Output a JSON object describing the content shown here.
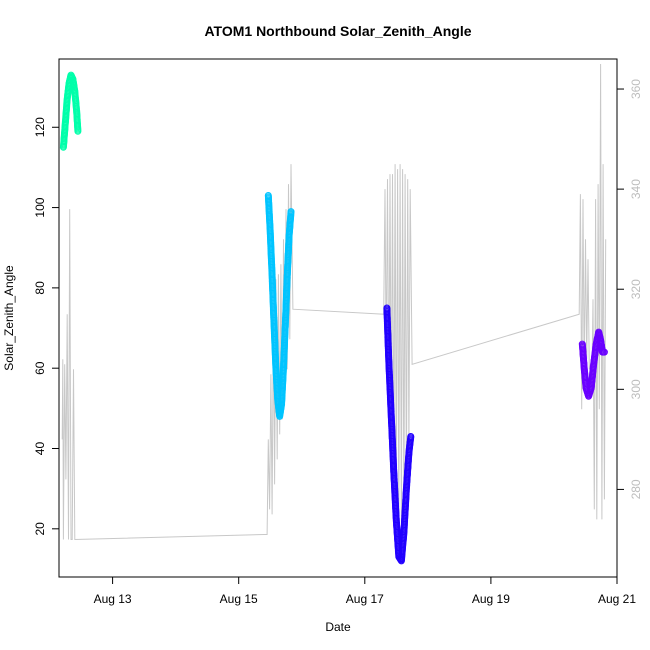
{
  "chart_data": {
    "type": "scatter",
    "title": "ATOM1 Northbound Solar_Zenith_Angle",
    "xlabel": "Date",
    "ylabel": "Solar_Zenith_Angle",
    "x_ticks": [
      "Aug 13",
      "Aug 15",
      "Aug 17",
      "Aug 19",
      "Aug 21"
    ],
    "x_tick_days": [
      13,
      15,
      17,
      19,
      21
    ],
    "xlim": [
      12.15,
      21.0
    ],
    "y_ticks": [
      20,
      40,
      60,
      80,
      100,
      120
    ],
    "ylim": [
      8,
      137
    ],
    "y2_ticks": [
      280,
      300,
      320,
      340,
      360
    ],
    "y2lim": [
      262.5,
      366
    ],
    "grid": false,
    "legend": "none",
    "colors": {
      "secondary_line": "#c8c8c8",
      "right_axis": "#bdbdbd",
      "seg1": "#00ffaa",
      "seg2": "#00c4ff",
      "seg3": "#2200ff",
      "seg4": "#6a00ff"
    },
    "series": [
      {
        "color_key": "seg1",
        "points": [
          [
            12.22,
            115
          ],
          [
            12.25,
            121
          ],
          [
            12.28,
            127
          ],
          [
            12.31,
            131
          ],
          [
            12.34,
            133
          ],
          [
            12.37,
            132
          ],
          [
            12.4,
            129
          ],
          [
            12.43,
            124
          ],
          [
            12.45,
            119
          ]
        ]
      },
      {
        "color_key": "seg2",
        "points": [
          [
            15.47,
            103
          ],
          [
            15.5,
            94
          ],
          [
            15.53,
            83
          ],
          [
            15.56,
            71
          ],
          [
            15.59,
            60
          ],
          [
            15.62,
            52
          ],
          [
            15.65,
            48
          ],
          [
            15.68,
            51
          ],
          [
            15.71,
            60
          ],
          [
            15.74,
            71
          ],
          [
            15.77,
            83
          ],
          [
            15.8,
            93
          ],
          [
            15.83,
            99
          ]
        ]
      },
      {
        "color_key": "seg3",
        "points": [
          [
            17.35,
            75
          ],
          [
            17.38,
            62
          ],
          [
            17.42,
            48
          ],
          [
            17.46,
            34
          ],
          [
            17.5,
            22
          ],
          [
            17.54,
            13
          ],
          [
            17.58,
            12
          ],
          [
            17.62,
            19
          ],
          [
            17.66,
            30
          ],
          [
            17.7,
            39
          ],
          [
            17.73,
            43
          ]
        ]
      },
      {
        "color_key": "seg4",
        "points": [
          [
            20.45,
            66
          ],
          [
            20.48,
            60
          ],
          [
            20.51,
            55
          ],
          [
            20.55,
            53
          ],
          [
            20.59,
            55
          ],
          [
            20.63,
            61
          ],
          [
            20.67,
            66
          ],
          [
            20.71,
            69
          ],
          [
            20.74,
            67
          ],
          [
            20.77,
            64
          ],
          [
            20.8,
            64
          ]
        ]
      }
    ],
    "secondary_series": {
      "points": [
        [
          12.2,
          290
        ],
        [
          12.21,
          306
        ],
        [
          12.22,
          270
        ],
        [
          12.24,
          305
        ],
        [
          12.26,
          282
        ],
        [
          12.28,
          315
        ],
        [
          12.3,
          270
        ],
        [
          12.32,
          336
        ],
        [
          12.34,
          270
        ],
        [
          12.36,
          270
        ],
        [
          12.38,
          304
        ],
        [
          12.4,
          270
        ],
        [
          15.4,
          271
        ],
        [
          15.45,
          271
        ],
        [
          15.47,
          290
        ],
        [
          15.49,
          276
        ],
        [
          15.51,
          303
        ],
        [
          15.53,
          275
        ],
        [
          15.55,
          315
        ],
        [
          15.57,
          281
        ],
        [
          15.59,
          322
        ],
        [
          15.61,
          286
        ],
        [
          15.63,
          323
        ],
        [
          15.65,
          291
        ],
        [
          15.67,
          325
        ],
        [
          15.69,
          294
        ],
        [
          15.71,
          330
        ],
        [
          15.73,
          298
        ],
        [
          15.75,
          336
        ],
        [
          15.77,
          304
        ],
        [
          15.79,
          341
        ],
        [
          15.81,
          310
        ],
        [
          15.83,
          345
        ],
        [
          15.86,
          316
        ],
        [
          17.3,
          315
        ],
        [
          17.32,
          340
        ],
        [
          17.34,
          304
        ],
        [
          17.36,
          342
        ],
        [
          17.38,
          294
        ],
        [
          17.4,
          343
        ],
        [
          17.42,
          287
        ],
        [
          17.44,
          343
        ],
        [
          17.46,
          282
        ],
        [
          17.48,
          345
        ],
        [
          17.5,
          278
        ],
        [
          17.52,
          344
        ],
        [
          17.54,
          274
        ],
        [
          17.56,
          345
        ],
        [
          17.58,
          272
        ],
        [
          17.6,
          344
        ],
        [
          17.62,
          274
        ],
        [
          17.64,
          343
        ],
        [
          17.66,
          280
        ],
        [
          17.68,
          342
        ],
        [
          17.7,
          288
        ],
        [
          17.72,
          340
        ],
        [
          17.75,
          305
        ],
        [
          20.4,
          315
        ],
        [
          20.42,
          339
        ],
        [
          20.44,
          296
        ],
        [
          20.46,
          338
        ],
        [
          20.48,
          302
        ],
        [
          20.5,
          330
        ],
        [
          20.52,
          306
        ],
        [
          20.54,
          326
        ],
        [
          20.56,
          304
        ],
        [
          20.58,
          305
        ],
        [
          20.6,
          300
        ],
        [
          20.62,
          318
        ],
        [
          20.64,
          276
        ],
        [
          20.66,
          338
        ],
        [
          20.68,
          274
        ],
        [
          20.7,
          341
        ],
        [
          20.72,
          296
        ],
        [
          20.74,
          365
        ],
        [
          20.76,
          274
        ],
        [
          20.78,
          345
        ],
        [
          20.8,
          278
        ],
        [
          20.82,
          330
        ]
      ]
    }
  }
}
